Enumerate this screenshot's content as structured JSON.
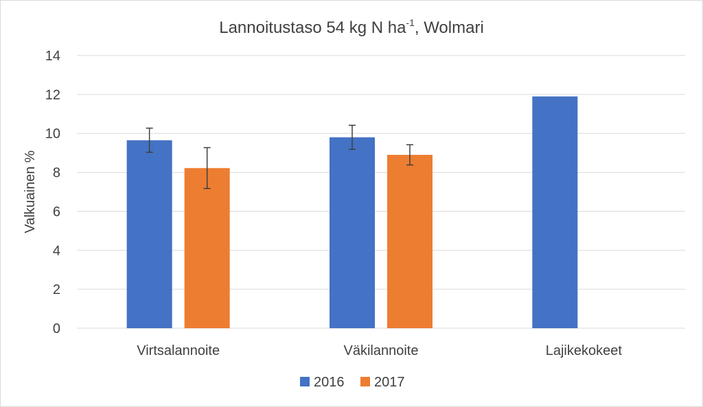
{
  "chart_data": {
    "type": "bar",
    "title_main": "Lannoitustaso 54 kg N ha",
    "title_sup": "-1",
    "title_suffix": ", Wolmari",
    "xlabel": "",
    "ylabel": "Valkuainen %",
    "ylim": [
      0,
      14
    ],
    "yticks": [
      0,
      2,
      4,
      6,
      8,
      10,
      12,
      14
    ],
    "grid": true,
    "legend_position": "bottom-center",
    "categories": [
      "Virtsalannoite",
      "Väkilannoite",
      "Lajikekokeet"
    ],
    "series": [
      {
        "name": "2016",
        "color": "#4472c4",
        "values": [
          9.65,
          9.8,
          11.9
        ],
        "errors": [
          0.62,
          0.62,
          null
        ]
      },
      {
        "name": "2017",
        "color": "#ed7d31",
        "values": [
          8.22,
          8.9,
          null
        ],
        "errors": [
          1.05,
          0.52,
          null
        ]
      }
    ]
  }
}
